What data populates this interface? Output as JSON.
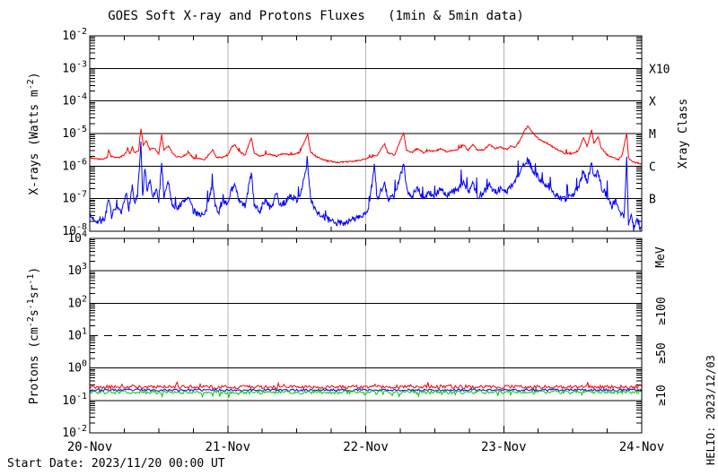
{
  "title": "GOES Soft X-ray and Protons Fluxes   (1min & 5min data)",
  "footer": {
    "start_date": "Start Date: 2023/11/20 00:00 UT",
    "credit": "HELIO: 2023/12/03"
  },
  "colors": {
    "red": "#ff0000",
    "blue": "#0000ff",
    "green": "#00cc00",
    "axis": "#000000",
    "day_grid": "#b4b4b4",
    "background": "#ffffff"
  },
  "x_axis": {
    "tick_labels": [
      "20-Nov",
      "21-Nov",
      "22-Nov",
      "23-Nov",
      "24-Nov"
    ],
    "day_hours": [
      0,
      24,
      48,
      72,
      96
    ],
    "hours_total": 96,
    "minor_tick_hours": 6
  },
  "chart_data": [
    {
      "type": "line",
      "name": "xray",
      "ylabel_runs": [
        {
          "t": "X-rays (Watts m"
        },
        {
          "t": "-2",
          "sup": true
        },
        {
          "t": ")"
        }
      ],
      "right_axis_title": "Xray Class",
      "y_exp_top": -2,
      "y_exp_bottom": -8,
      "y_tick_exps": [
        -2,
        -3,
        -4,
        -5,
        -6,
        -7,
        -8
      ],
      "hlines": [
        {
          "exp": -3,
          "style": "solid"
        },
        {
          "exp": -4,
          "style": "solid"
        },
        {
          "exp": -5,
          "style": "solid"
        },
        {
          "exp": -6,
          "style": "solid"
        },
        {
          "exp": -7,
          "style": "solid"
        }
      ],
      "right_labels": [
        {
          "text": "X10",
          "exp": -3
        },
        {
          "text": "X",
          "exp": -4
        },
        {
          "text": "M",
          "exp": -5
        },
        {
          "text": "C",
          "exp": -6
        },
        {
          "text": "B",
          "exp": -7
        }
      ],
      "series": [
        {
          "name": "xray-long-0.1-0.8nm",
          "color": "red",
          "seed": 11,
          "step": 0.1,
          "jitter": 0.022,
          "spike_p": 0.02,
          "spike_amp": 0.15,
          "spike_dir": 1,
          "points": [
            [
              0,
              1.8e-06
            ],
            [
              1,
              1.7e-06
            ],
            [
              2,
              1.6e-06
            ],
            [
              3,
              1.8e-06
            ],
            [
              3.3,
              3.2e-06
            ],
            [
              3.7,
              2e-06
            ],
            [
              5,
              1.8e-06
            ],
            [
              6,
              2.2e-06
            ],
            [
              6.6,
              3.2e-06
            ],
            [
              7,
              2.4e-06
            ],
            [
              7.4,
              3.8e-06
            ],
            [
              7.8,
              2.6e-06
            ],
            [
              8.5,
              3e-06
            ],
            [
              8.9,
              1.45e-05
            ],
            [
              9.3,
              4.5e-06
            ],
            [
              9.9,
              6e-06
            ],
            [
              10.4,
              3.2e-06
            ],
            [
              11.3,
              3.6e-06
            ],
            [
              12,
              2.4e-06
            ],
            [
              12.5,
              9e-06
            ],
            [
              12.9,
              3.2e-06
            ],
            [
              13.7,
              4.2e-06
            ],
            [
              14.3,
              2.6e-06
            ],
            [
              15,
              2e-06
            ],
            [
              16,
              1.9e-06
            ],
            [
              17.2,
              2.6e-06
            ],
            [
              18,
              1.8e-06
            ],
            [
              19,
              1.7e-06
            ],
            [
              20,
              1.6e-06
            ],
            [
              21.4,
              3.2e-06
            ],
            [
              22,
              1.9e-06
            ],
            [
              23,
              1.8e-06
            ],
            [
              24,
              2.2e-06
            ],
            [
              24.6,
              3.6e-06
            ],
            [
              25.2,
              4.6e-06
            ],
            [
              26,
              2.8e-06
            ],
            [
              27,
              2.2e-06
            ],
            [
              28.1,
              7.5e-06
            ],
            [
              28.6,
              2.6e-06
            ],
            [
              29.5,
              2e-06
            ],
            [
              31,
              2.4e-06
            ],
            [
              32.5,
              2e-06
            ],
            [
              33.5,
              2.4e-06
            ],
            [
              35,
              2.2e-06
            ],
            [
              36.5,
              2.6e-06
            ],
            [
              37.9,
              9.5e-06
            ],
            [
              38.4,
              2.8e-06
            ],
            [
              39.5,
              1.9e-06
            ],
            [
              41,
              1.5e-06
            ],
            [
              43,
              1.3e-06
            ],
            [
              45,
              1.35e-06
            ],
            [
              47,
              1.5e-06
            ],
            [
              48.5,
              1.8e-06
            ],
            [
              50,
              2.2e-06
            ],
            [
              51.3,
              4.8e-06
            ],
            [
              51.8,
              2.6e-06
            ],
            [
              53,
              2.2e-06
            ],
            [
              54.6,
              1.05e-05
            ],
            [
              55.1,
              3e-06
            ],
            [
              56,
              2.6e-06
            ],
            [
              57,
              3.4e-06
            ],
            [
              58,
              2.6e-06
            ],
            [
              59,
              3e-06
            ],
            [
              60,
              2.8e-06
            ],
            [
              61,
              3.4e-06
            ],
            [
              62,
              2.8e-06
            ],
            [
              63,
              3e-06
            ],
            [
              64,
              3.2e-06
            ],
            [
              65,
              4.5e-06
            ],
            [
              65.8,
              3e-06
            ],
            [
              66.6,
              4.7e-06
            ],
            [
              67.5,
              3e-06
            ],
            [
              68.5,
              3.2e-06
            ],
            [
              69.5,
              4.5e-06
            ],
            [
              70.5,
              3.5e-06
            ],
            [
              71.5,
              3.8e-06
            ],
            [
              72.5,
              3.2e-06
            ],
            [
              73.2,
              4.2e-06
            ],
            [
              74,
              3.8e-06
            ],
            [
              74.8,
              6e-06
            ],
            [
              75.6,
              1.2e-05
            ],
            [
              76.2,
              1.7e-05
            ],
            [
              77,
              1.1e-05
            ],
            [
              78,
              7e-06
            ],
            [
              79.5,
              5e-06
            ],
            [
              81,
              3.5e-06
            ],
            [
              82.5,
              2.5e-06
            ],
            [
              84,
              2.4e-06
            ],
            [
              85,
              3e-06
            ],
            [
              85.9,
              7.5e-06
            ],
            [
              86.5,
              4e-06
            ],
            [
              87.3,
              1.3e-05
            ],
            [
              87.7,
              5e-06
            ],
            [
              88.4,
              8e-06
            ],
            [
              89,
              3.5e-06
            ],
            [
              90,
              2.2e-06
            ],
            [
              91,
              1.8e-06
            ],
            [
              92,
              1.6e-06
            ],
            [
              92.6,
              2.2e-06
            ],
            [
              93.4,
              1.05e-05
            ],
            [
              93.7,
              1.8e-06
            ],
            [
              94.3,
              1.4e-06
            ],
            [
              95,
              1.25e-06
            ],
            [
              96,
              1.2e-06
            ]
          ]
        },
        {
          "name": "xray-short-0.05-0.4nm",
          "color": "blue",
          "seed": 7,
          "step": 0.1,
          "jitter": 0.1,
          "spike_p": 0.05,
          "spike_amp": 0.45,
          "spike_dir": 1,
          "points": [
            [
              0,
              3e-08
            ],
            [
              0.5,
              2.5e-08
            ],
            [
              1.5,
              2e-08
            ],
            [
              2.5,
              2.2e-08
            ],
            [
              3.3,
              9e-08
            ],
            [
              3.8,
              3e-08
            ],
            [
              4.5,
              5e-08
            ],
            [
              5.5,
              3.5e-08
            ],
            [
              6.4,
              1.5e-07
            ],
            [
              6.8,
              5e-08
            ],
            [
              7.4,
              2.5e-07
            ],
            [
              7.8,
              7e-08
            ],
            [
              8.3,
              1.2e-07
            ],
            [
              8.9,
              4.5e-06
            ],
            [
              9.2,
              1.2e-07
            ],
            [
              9.6,
              9e-07
            ],
            [
              10,
              1.5e-07
            ],
            [
              10.5,
              3.5e-07
            ],
            [
              11,
              1e-07
            ],
            [
              11.5,
              2e-07
            ],
            [
              12,
              8e-08
            ],
            [
              12.5,
              1.4e-06
            ],
            [
              12.9,
              1.2e-07
            ],
            [
              13.7,
              3.5e-07
            ],
            [
              14.2,
              8e-08
            ],
            [
              15,
              5e-08
            ],
            [
              16,
              7e-08
            ],
            [
              17.2,
              1.2e-07
            ],
            [
              18,
              4e-08
            ],
            [
              19,
              3.5e-08
            ],
            [
              20,
              3e-08
            ],
            [
              21.4,
              3e-07
            ],
            [
              21.8,
              6e-08
            ],
            [
              22.5,
              4e-08
            ],
            [
              23.2,
              9e-08
            ],
            [
              24,
              6e-08
            ],
            [
              24.5,
              1.8e-07
            ],
            [
              25.2,
              2.5e-07
            ],
            [
              26,
              8e-08
            ],
            [
              27,
              6e-08
            ],
            [
              28.1,
              6e-07
            ],
            [
              28.6,
              7e-08
            ],
            [
              29.5,
              4e-08
            ],
            [
              30.5,
              9e-08
            ],
            [
              31.5,
              5e-08
            ],
            [
              32.5,
              1.4e-07
            ],
            [
              33.2,
              6e-08
            ],
            [
              34,
              8e-08
            ],
            [
              35,
              1.2e-07
            ],
            [
              36,
              9e-08
            ],
            [
              36.8,
              1.8e-07
            ],
            [
              37.9,
              1.1e-06
            ],
            [
              38.4,
              1e-07
            ],
            [
              39.5,
              4e-08
            ],
            [
              41,
              2.5e-08
            ],
            [
              42.5,
              1.8e-08
            ],
            [
              44,
              1.8e-08
            ],
            [
              45.5,
              2.2e-08
            ],
            [
              47,
              2.8e-08
            ],
            [
              48.5,
              4e-08
            ],
            [
              49.5,
              1.05e-06
            ],
            [
              50,
              9e-08
            ],
            [
              51.3,
              3.5e-07
            ],
            [
              51.8,
              1e-07
            ],
            [
              53,
              1.2e-07
            ],
            [
              54.6,
              1.1e-06
            ],
            [
              55.2,
              1.8e-07
            ],
            [
              56,
              1.2e-07
            ],
            [
              57,
              2.2e-07
            ],
            [
              58,
              1e-07
            ],
            [
              59,
              1.6e-07
            ],
            [
              60,
              1.1e-07
            ],
            [
              61,
              2.2e-07
            ],
            [
              62,
              1.2e-07
            ],
            [
              63,
              1.6e-07
            ],
            [
              64,
              1.8e-07
            ],
            [
              65,
              3.5e-07
            ],
            [
              65.8,
              1.4e-07
            ],
            [
              66.6,
              3.2e-07
            ],
            [
              67.5,
              1.2e-07
            ],
            [
              68.5,
              1.5e-07
            ],
            [
              69.5,
              2.8e-07
            ],
            [
              70.5,
              1.6e-07
            ],
            [
              71.5,
              2e-07
            ],
            [
              72.5,
              1.6e-07
            ],
            [
              73.5,
              2.8e-07
            ],
            [
              74.5,
              5e-07
            ],
            [
              75.5,
              1.1e-06
            ],
            [
              76.2,
              1.5e-06
            ],
            [
              77,
              8e-07
            ],
            [
              78,
              4.5e-07
            ],
            [
              79.5,
              2.5e-07
            ],
            [
              81,
              1.4e-07
            ],
            [
              82.5,
              9e-08
            ],
            [
              84,
              1.3e-07
            ],
            [
              85,
              2.2e-07
            ],
            [
              85.9,
              7e-07
            ],
            [
              86.5,
              3e-07
            ],
            [
              87.3,
              1.5e-06
            ],
            [
              87.7,
              4e-07
            ],
            [
              88.4,
              7e-07
            ],
            [
              89,
              2.2e-07
            ],
            [
              90,
              1.2e-07
            ],
            [
              90.8,
              6e-08
            ],
            [
              91.5,
              9e-08
            ],
            [
              92.3,
              4e-08
            ],
            [
              92.9,
              2.5e-08
            ],
            [
              93.4,
              1.6e-06
            ],
            [
              93.7,
              1.5e-08
            ],
            [
              94.2,
              4e-08
            ],
            [
              94.6,
              1.2e-08
            ],
            [
              95.2,
              2.5e-08
            ],
            [
              95.7,
              1e-08
            ],
            [
              96,
              1.2e-08
            ]
          ]
        }
      ]
    },
    {
      "type": "line",
      "name": "proton",
      "ylabel_runs": [
        {
          "t": "Protons (cm"
        },
        {
          "t": "-2",
          "sup": true
        },
        {
          "t": "s"
        },
        {
          "t": "-1",
          "sup": true
        },
        {
          "t": "sr"
        },
        {
          "t": "-1",
          "sup": true
        },
        {
          "t": ")"
        }
      ],
      "right_axis_title": "MeV",
      "y_exp_top": 4,
      "y_exp_bottom": -2,
      "y_tick_exps": [
        4,
        3,
        2,
        1,
        0,
        -1,
        -2
      ],
      "hlines": [
        {
          "exp": 3,
          "style": "solid"
        },
        {
          "exp": 2,
          "style": "solid"
        },
        {
          "exp": 1,
          "style": "dashed"
        },
        {
          "exp": 0,
          "style": "solid"
        },
        {
          "exp": -1,
          "style": "solid"
        }
      ],
      "right_labels": [],
      "series": [
        {
          "name": "protons-ge50MeV",
          "legend": "≥50",
          "color": "blue",
          "seed": 23,
          "step": 0.2,
          "jitter": 0.035,
          "spike_p": 0,
          "spike_amp": 0,
          "spike_dir": 1,
          "points": [
            [
              0,
              0.21
            ],
            [
              96,
              0.21
            ]
          ]
        },
        {
          "name": "protons-ge10MeV",
          "legend": "≥10",
          "color": "red",
          "seed": 19,
          "step": 0.2,
          "jitter": 0.055,
          "spike_p": 0.05,
          "spike_amp": 0.13,
          "spike_dir": 1,
          "points": [
            [
              0,
              0.26
            ],
            [
              96,
              0.26
            ]
          ]
        },
        {
          "name": "protons-ge100MeV",
          "legend": "≥100",
          "color": "green",
          "seed": 31,
          "step": 0.2,
          "jitter": 0.055,
          "spike_p": 0.05,
          "spike_amp": 0.13,
          "spike_dir": -1,
          "points": [
            [
              0,
              0.18
            ],
            [
              96,
              0.18
            ]
          ]
        }
      ]
    }
  ]
}
